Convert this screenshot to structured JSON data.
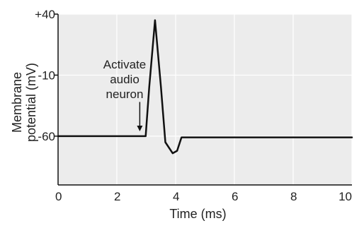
{
  "chart_data": {
    "type": "line",
    "title": "",
    "xlabel": "Time (ms)",
    "ylabel_lines": [
      "Membrane",
      "potential (mV)"
    ],
    "xlim": [
      0,
      10
    ],
    "ylim": [
      -100,
      40
    ],
    "x_ticks": [
      0,
      2,
      4,
      6,
      8,
      10
    ],
    "x_tick_labels": [
      "0",
      "2",
      "4",
      "6",
      "8",
      "10"
    ],
    "y_ticks": [
      40,
      -10,
      -60
    ],
    "y_tick_labels": [
      "+40",
      "-10",
      "-60"
    ],
    "grid": true,
    "colors": {
      "plot_background": "#ececec",
      "grid": "#ffffff",
      "line": "#111111",
      "axis": "#111111"
    },
    "series": [
      {
        "x": [
          0,
          2.98,
          3.1,
          3.3,
          3.5,
          3.65,
          3.9,
          4.05,
          4.2,
          10
        ],
        "y": [
          -60,
          -60,
          -20,
          35,
          -20,
          -65,
          -74,
          -72,
          -61,
          -61
        ]
      }
    ],
    "annotation": {
      "lines": [
        "Activate",
        "audio",
        "neuron"
      ],
      "arrow_x": 2.78,
      "arrow_y_from": -32,
      "arrow_y_to": -56
    }
  }
}
